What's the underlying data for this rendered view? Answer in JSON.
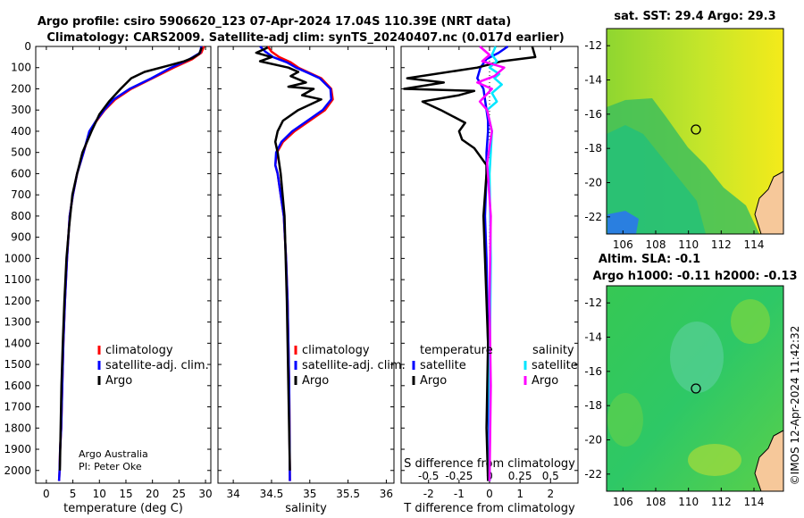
{
  "header": {
    "title_line1": "Argo profile: csiro 5906620_123 07-Apr-2024 17.04S 110.39E (NRT data)",
    "title_line2": "Climatology: CARS2009. Satellite-adj clim: synTS_20240407.nc (0.017d earlier)"
  },
  "colors": {
    "climatology": "#ff0000",
    "satellite_adj": "#0000ff",
    "argo": "#000000",
    "sal_satellite": "#00e5ff",
    "sal_argo": "#ff00ff"
  },
  "depth_axis": {
    "ticks": [
      "0",
      "100",
      "200",
      "300",
      "400",
      "500",
      "600",
      "700",
      "800",
      "900",
      "1000",
      "1100",
      "1200",
      "1300",
      "1400",
      "1500",
      "1600",
      "1700",
      "1800",
      "1900",
      "2000"
    ]
  },
  "legend": {
    "climatology": "climatology",
    "satellite_adj": "satellite-adj. clim.",
    "argo": "Argo",
    "temperature_header": "temperature",
    "salinity_header": "salinity",
    "satellite": "satellite",
    "argo2": "Argo"
  },
  "credits": {
    "line1": "Argo Australia",
    "line2": "PI: Peter Oke"
  },
  "timestamp": "©IMOS 12-Apr-2024 11:42:32",
  "chart_data": [
    {
      "type": "line",
      "title": "",
      "xlabel": "temperature (deg C)",
      "ylabel": "depth",
      "xlim": [
        -2,
        31
      ],
      "ylim": [
        2060,
        0
      ],
      "xticks": [
        "0",
        "5",
        "10",
        "15",
        "20",
        "25",
        "30"
      ],
      "series": [
        {
          "name": "climatology",
          "x": [
            29.7,
            29.2,
            27.5,
            24,
            20,
            16,
            13,
            11,
            9.5,
            8.2,
            7.0,
            5.8,
            5.0,
            4.4,
            3.9,
            3.5,
            3.2,
            3.0,
            2.8,
            2.6,
            2.5,
            2.4
          ],
          "y": [
            0,
            30,
            60,
            100,
            150,
            200,
            250,
            300,
            350,
            400,
            500,
            600,
            700,
            800,
            1000,
            1200,
            1400,
            1600,
            1800,
            1900,
            2000,
            2050
          ]
        },
        {
          "name": "satellite-adj. clim.",
          "x": [
            29.2,
            29.0,
            27.0,
            23.5,
            19.8,
            15.7,
            12.7,
            10.9,
            9.4,
            8.1,
            7.0,
            5.8,
            5.0,
            4.4,
            3.9,
            3.5,
            3.2,
            3.0,
            2.8,
            2.6,
            2.5,
            2.4
          ],
          "y": [
            0,
            30,
            60,
            100,
            150,
            200,
            250,
            300,
            350,
            400,
            500,
            600,
            700,
            800,
            1000,
            1200,
            1400,
            1600,
            1800,
            1900,
            2000,
            2050
          ]
        },
        {
          "name": "Argo",
          "x": [
            29.3,
            28.8,
            27.5,
            26,
            23,
            18.5,
            16,
            14,
            11.8,
            10,
            8.5,
            6.8,
            5.8,
            4.9,
            4.3,
            3.8,
            3.4,
            3.1,
            2.85,
            2.7,
            2.55
          ],
          "y": [
            5,
            35,
            55,
            70,
            90,
            120,
            150,
            200,
            260,
            320,
            400,
            500,
            600,
            700,
            850,
            1000,
            1200,
            1400,
            1600,
            1800,
            2000
          ]
        }
      ]
    },
    {
      "type": "line",
      "title": "",
      "xlabel": "salinity",
      "ylabel": "depth",
      "xlim": [
        33.8,
        36.1
      ],
      "ylim": [
        2060,
        0
      ],
      "xticks": [
        "34",
        "34.5",
        "35",
        "35.5",
        "36"
      ],
      "series": [
        {
          "name": "climatology",
          "x": [
            34.45,
            34.5,
            34.6,
            34.75,
            34.85,
            35.0,
            35.15,
            35.28,
            35.3,
            35.2,
            35.0,
            34.8,
            34.65,
            34.57,
            34.55,
            34.58,
            34.62,
            34.66,
            34.69,
            34.71,
            34.72,
            34.73,
            34.74
          ],
          "y": [
            0,
            25,
            50,
            75,
            100,
            125,
            150,
            200,
            250,
            300,
            350,
            400,
            450,
            500,
            560,
            600,
            700,
            800,
            1000,
            1200,
            1400,
            1600,
            2050
          ]
        },
        {
          "name": "satellite-adj. clim.",
          "x": [
            34.35,
            34.42,
            34.52,
            34.7,
            34.82,
            34.98,
            35.13,
            35.27,
            35.28,
            35.17,
            34.97,
            34.77,
            34.63,
            34.56,
            34.55,
            34.58,
            34.62,
            34.66,
            34.69,
            34.71,
            34.72,
            34.73,
            34.74
          ],
          "y": [
            0,
            25,
            50,
            75,
            100,
            125,
            150,
            200,
            250,
            300,
            350,
            400,
            450,
            500,
            560,
            600,
            700,
            800,
            1000,
            1200,
            1400,
            1600,
            2050
          ]
        },
        {
          "name": "Argo",
          "x": [
            34.45,
            34.3,
            34.5,
            34.35,
            34.72,
            34.85,
            34.75,
            34.95,
            34.72,
            35.05,
            34.9,
            35.15,
            34.85,
            34.65,
            34.58,
            34.55,
            34.58,
            34.62,
            34.67,
            34.7,
            34.72,
            34.74
          ],
          "y": [
            5,
            30,
            50,
            70,
            100,
            120,
            140,
            170,
            190,
            200,
            230,
            250,
            300,
            350,
            400,
            450,
            500,
            600,
            800,
            1200,
            1600,
            2000
          ]
        }
      ]
    },
    {
      "type": "line",
      "title": "",
      "xlabel": "T difference from climatology",
      "xlabel_top": "S difference from climatology",
      "ylabel": "depth",
      "xlim": [
        -2.9,
        2.9
      ],
      "ylim": [
        2060,
        0
      ],
      "xticks": [
        "-2",
        "-1",
        "0",
        "1",
        "2"
      ],
      "xticks_s": [
        "-0.5",
        "-0.25",
        "0",
        "0.25",
        "0.5"
      ],
      "series": [
        {
          "name": "T satellite",
          "x": [
            0.6,
            0.3,
            -0.1,
            -0.3,
            -0.4,
            -0.2,
            -0.1,
            -0.05,
            -0.05,
            -0.1,
            -0.1,
            -0.15,
            -0.1,
            -0.05,
            -0.02,
            0
          ],
          "y": [
            0,
            30,
            60,
            100,
            150,
            200,
            300,
            350,
            400,
            500,
            600,
            800,
            1000,
            1400,
            1800,
            2050
          ]
        },
        {
          "name": "T Argo",
          "x": [
            1.4,
            1.5,
            0.4,
            -0.4,
            -2.7,
            -1.5,
            -2.8,
            -0.5,
            -1.0,
            -2.2,
            -1.6,
            -0.8,
            -1.0,
            -0.9,
            -0.5,
            -0.3,
            -0.1,
            -0.1,
            -0.2,
            -0.15,
            -0.05,
            -0.1,
            -0.05
          ],
          "y": [
            0,
            50,
            70,
            100,
            150,
            170,
            200,
            210,
            230,
            260,
            300,
            360,
            400,
            440,
            480,
            520,
            560,
            600,
            800,
            1000,
            1400,
            1800,
            2050
          ]
        },
        {
          "name": "S satellite",
          "x": [
            0.05,
            0.02,
            0.06,
            0.0,
            0.08,
            0.04,
            0.1,
            0.02,
            0.06,
            -0.02,
            0.02,
            0.0,
            0.01,
            0.0,
            0.0
          ],
          "y": [
            0,
            40,
            70,
            100,
            130,
            150,
            180,
            220,
            260,
            300,
            400,
            600,
            1000,
            1600,
            2050
          ]
        },
        {
          "name": "S Argo",
          "x": [
            -0.08,
            0.0,
            -0.06,
            0.12,
            0.04,
            -0.1,
            0.02,
            -0.08,
            -0.02,
            0.02,
            -0.02,
            0.01,
            0.0,
            0.01,
            0.0
          ],
          "y": [
            0,
            40,
            70,
            100,
            140,
            170,
            200,
            260,
            300,
            400,
            550,
            800,
            1200,
            1600,
            2050
          ]
        }
      ]
    },
    {
      "type": "heatmap",
      "title": "sat. SST: 29.4 Argo: 29.3",
      "xlim": [
        105,
        115.8
      ],
      "ylim": [
        -23,
        -11
      ],
      "xticks": [
        "106",
        "108",
        "110",
        "112",
        "114"
      ],
      "yticks": [
        "-12",
        "-14",
        "-16",
        "-18",
        "-20",
        "-22"
      ],
      "argo_position": {
        "lon": 110.39,
        "lat": -17.04
      }
    },
    {
      "type": "heatmap",
      "title": "Altim. SLA: -0.1",
      "subtitle": "Argo h1000: -0.11 h2000: -0.13",
      "xlim": [
        105,
        115.8
      ],
      "ylim": [
        -23,
        -11
      ],
      "xticks": [
        "106",
        "108",
        "110",
        "112",
        "114"
      ],
      "yticks": [
        "-12",
        "-14",
        "-16",
        "-18",
        "-20",
        "-22"
      ],
      "argo_position": {
        "lon": 110.39,
        "lat": -17.04
      }
    }
  ]
}
